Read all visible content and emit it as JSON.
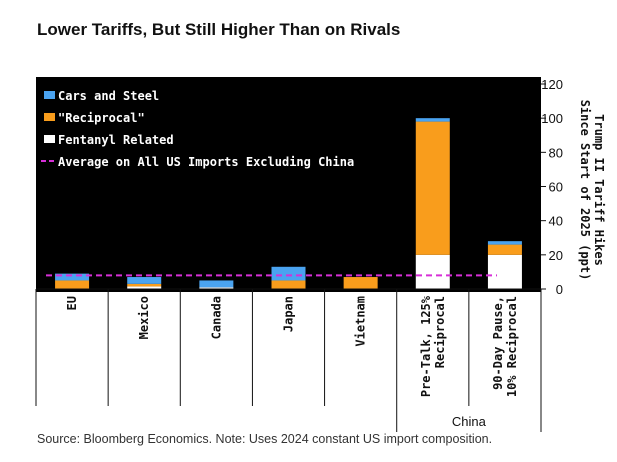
{
  "title": "Lower Tariffs, But Still Higher Than on Rivals",
  "source": "Source: Bloomberg Economics. Note: Uses 2024 constant US import composition.",
  "colors": {
    "background": "#000000",
    "cars_steel": "#4aa3f0",
    "reciprocal": "#f99d1c",
    "fentanyl": "#ffffff",
    "average": "#d72fd7"
  },
  "chart_data": {
    "type": "bar",
    "stacked": true,
    "categories": [
      "EU",
      "Mexico",
      "Canada",
      "Japan",
      "Vietnam",
      "Pre-Talk, 125% Reciprocal",
      "90-Day Pause, 10% Reciprocal"
    ],
    "category_lines": [
      [
        "EU"
      ],
      [
        "Mexico"
      ],
      [
        "Canada"
      ],
      [
        "Japan"
      ],
      [
        "Vietnam"
      ],
      [
        "Pre-Talk, 125%",
        "Reciprocal"
      ],
      [
        "90-Day Pause,",
        "10% Reciprocal"
      ]
    ],
    "group_label": "China",
    "series": [
      {
        "name": "Fentanyl Related",
        "color": "#ffffff",
        "values": [
          0,
          1.5,
          1,
          0,
          0,
          20,
          20
        ]
      },
      {
        "name": "\"Reciprocal\"",
        "color": "#f99d1c",
        "values": [
          5,
          1.5,
          0,
          5,
          7,
          78,
          6
        ]
      },
      {
        "name": "Cars and Steel",
        "color": "#4aa3f0",
        "values": [
          4,
          4,
          4,
          8,
          0,
          2,
          2
        ]
      }
    ],
    "average_line": {
      "name": "Average on All US Imports Excluding China",
      "value": 8
    },
    "ylabel": "Trump II Tariff Hikes Since Start of 2025 (ppt)",
    "ylim": [
      0,
      120
    ],
    "yticks": [
      0,
      20,
      40,
      60,
      80,
      100,
      120
    ],
    "legend_position": "top-left"
  }
}
